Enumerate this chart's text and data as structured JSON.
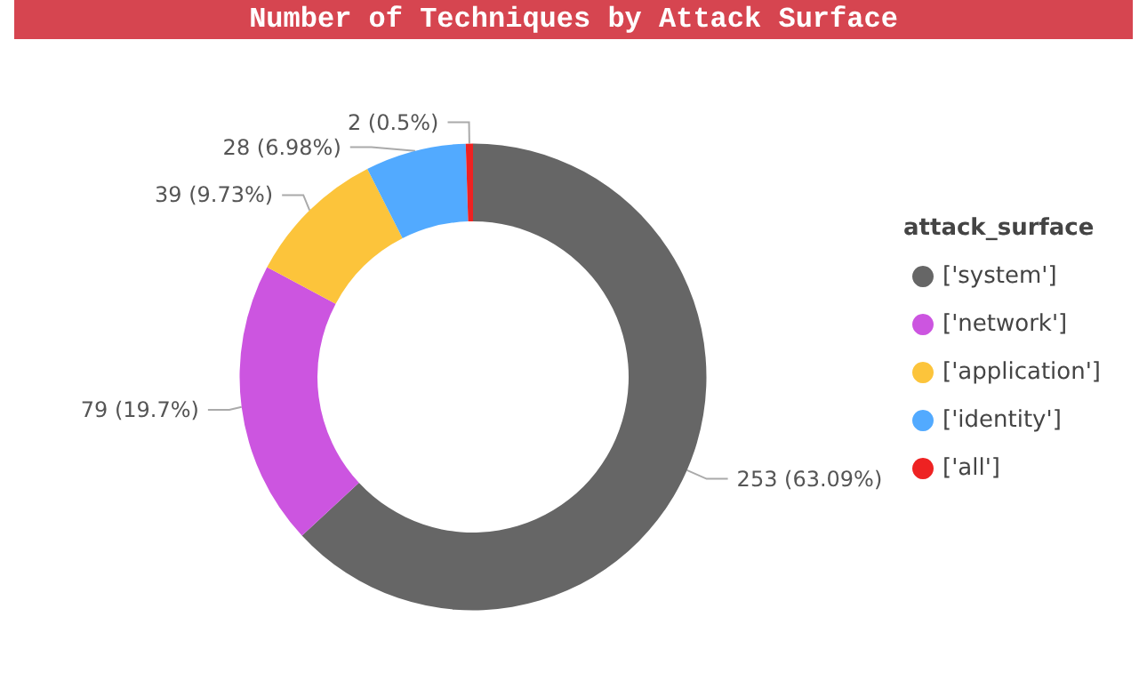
{
  "chart_data": {
    "type": "donut",
    "title": "Number of Techniques by Attack Surface",
    "legend_title": "attack_surface",
    "legend": "right",
    "categories": [
      "['system']",
      "['network']",
      "['application']",
      "['identity']",
      "['all']"
    ],
    "values": [
      253,
      79,
      39,
      28,
      2
    ],
    "value_labels": [
      "253 (63.09%)",
      "79 (19.7%)",
      "39 (9.73%)",
      "28 (6.98%)",
      "2 (0.5%)"
    ],
    "colors": [
      "#666666",
      "#cc55e0",
      "#fcc43b",
      "#52aaff",
      "#ee2222"
    ]
  }
}
